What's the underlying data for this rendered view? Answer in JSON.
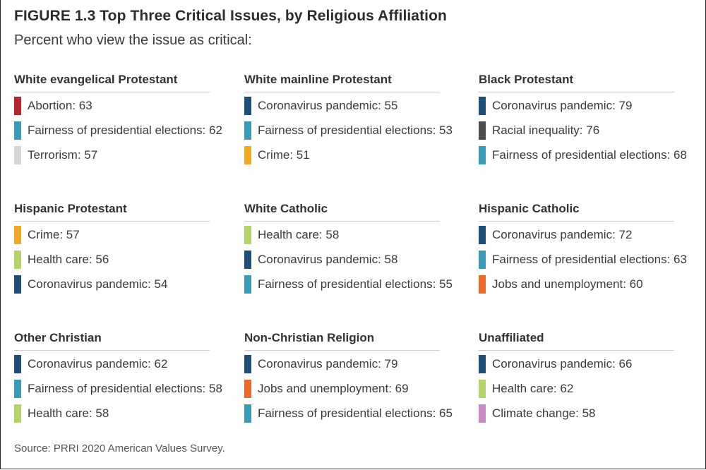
{
  "title": "FIGURE 1.3 Top Three Critical Issues, by Religious Affiliation",
  "subtitle": "Percent who view the issue as critical:",
  "source": "Source: PRRI 2020 American Values Survey.",
  "colors": {
    "Abortion": "#b5262f",
    "Fairness of presidential elections": "#3b9ab6",
    "Terrorism": "#d6d6d6",
    "Coronavirus pandemic": "#1f4e79",
    "Crime": "#f2a926",
    "Racial inequality": "#4d4d4d",
    "Health care": "#b3d36b",
    "Jobs and unemployment": "#ea6a2c",
    "Climate change": "#c98bc2"
  },
  "chart_data": {
    "type": "table",
    "groups": [
      {
        "name": "White evangelical Protestant",
        "items": [
          {
            "issue": "Abortion",
            "value": 63,
            "label": "Abortion: 63"
          },
          {
            "issue": "Fairness of presidential elections",
            "value": 62,
            "label": "Fairness of presidential elections: 62"
          },
          {
            "issue": "Terrorism",
            "value": 57,
            "label": "Terrorism: 57"
          }
        ]
      },
      {
        "name": "White mainline Protestant",
        "items": [
          {
            "issue": "Coronavirus pandemic",
            "value": 55,
            "label": "Coronavirus pandemic: 55"
          },
          {
            "issue": "Fairness of presidential elections",
            "value": 53,
            "label": "Fairness of presidential elections: 53"
          },
          {
            "issue": "Crime",
            "value": 51,
            "label": "Crime: 51"
          }
        ]
      },
      {
        "name": "Black Protestant",
        "items": [
          {
            "issue": "Coronavirus pandemic",
            "value": 79,
            "label": "Coronavirus pandemic: 79"
          },
          {
            "issue": "Racial inequality",
            "value": 76,
            "label": "Racial inequality: 76"
          },
          {
            "issue": "Fairness of presidential elections",
            "value": 68,
            "label": "Fairness of presidential elections: 68"
          }
        ]
      },
      {
        "name": "Hispanic Protestant",
        "items": [
          {
            "issue": "Crime",
            "value": 57,
            "label": "Crime: 57"
          },
          {
            "issue": "Health care",
            "value": 56,
            "label": "Health care: 56"
          },
          {
            "issue": "Coronavirus pandemic",
            "value": 54,
            "label": "Coronavirus pandemic: 54"
          }
        ]
      },
      {
        "name": "White Catholic",
        "items": [
          {
            "issue": "Health care",
            "value": 58,
            "label": "Health care: 58"
          },
          {
            "issue": "Coronavirus pandemic",
            "value": 58,
            "label": "Coronavirus pandemic: 58"
          },
          {
            "issue": "Fairness of presidential elections",
            "value": 55,
            "label": "Fairness of presidential elections:  55"
          }
        ]
      },
      {
        "name": "Hispanic Catholic",
        "items": [
          {
            "issue": "Coronavirus pandemic",
            "value": 72,
            "label": "Coronavirus pandemic: 72"
          },
          {
            "issue": "Fairness of presidential elections",
            "value": 63,
            "label": "Fairness of presidential elections: 63"
          },
          {
            "issue": "Jobs and unemployment",
            "value": 60,
            "label": "Jobs and unemployment: 60"
          }
        ]
      },
      {
        "name": "Other Christian",
        "items": [
          {
            "issue": "Coronavirus pandemic",
            "value": 62,
            "label": "Coronavirus pandemic: 62"
          },
          {
            "issue": "Fairness of presidential elections",
            "value": 58,
            "label": "Fairness of presidential elections: 58"
          },
          {
            "issue": "Health care",
            "value": 58,
            "label": "Health care: 58"
          }
        ]
      },
      {
        "name": "Non-Christian Religion",
        "items": [
          {
            "issue": "Coronavirus pandemic",
            "value": 79,
            "label": "Coronavirus pandemic: 79"
          },
          {
            "issue": "Jobs and unemployment",
            "value": 69,
            "label": "Jobs and unemployment: 69"
          },
          {
            "issue": "Fairness of presidential elections",
            "value": 65,
            "label": "Fairness of presidential elections: 65"
          }
        ]
      },
      {
        "name": "Unaffiliated",
        "items": [
          {
            "issue": "Coronavirus pandemic",
            "value": 66,
            "label": "Coronavirus pandemic: 66"
          },
          {
            "issue": "Health care",
            "value": 62,
            "label": "Health care: 62"
          },
          {
            "issue": "Climate change",
            "value": 58,
            "label": "Climate change: 58"
          }
        ]
      }
    ]
  }
}
